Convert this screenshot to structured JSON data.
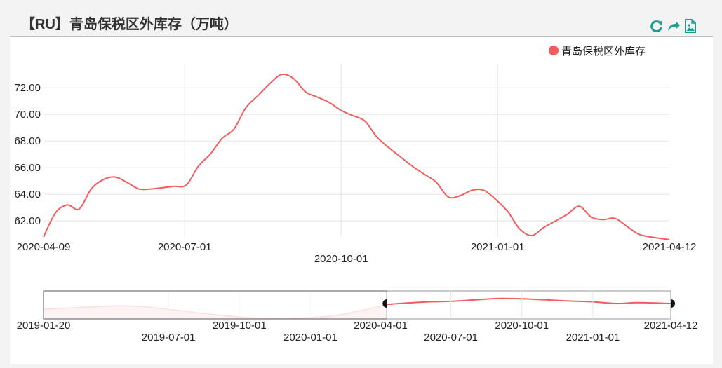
{
  "title": "【RU】青岛保税区外库存（万吨）",
  "toolbar": {
    "icons": [
      "refresh-icon",
      "share-icon",
      "save-image-icon"
    ],
    "color": "#1a9e8f"
  },
  "chart_data": {
    "type": "line",
    "title": "【RU】青岛保税区外库存（万吨）",
    "legend": {
      "position": "top-right",
      "entries": [
        "青岛保税区外库存"
      ]
    },
    "series": [
      {
        "name": "青岛保税区外库存",
        "color": "#f25c5c",
        "points": [
          [
            "2020-04-09",
            60.8
          ],
          [
            "2020-04-16",
            62.6
          ],
          [
            "2020-04-23",
            63.2
          ],
          [
            "2020-04-30",
            62.9
          ],
          [
            "2020-05-07",
            64.4
          ],
          [
            "2020-05-14",
            65.1
          ],
          [
            "2020-05-21",
            65.3
          ],
          [
            "2020-05-28",
            64.9
          ],
          [
            "2020-06-04",
            64.4
          ],
          [
            "2020-06-11",
            64.4
          ],
          [
            "2020-06-18",
            64.5
          ],
          [
            "2020-06-25",
            64.6
          ],
          [
            "2020-07-02",
            64.7
          ],
          [
            "2020-07-09",
            66.1
          ],
          [
            "2020-07-16",
            67.0
          ],
          [
            "2020-07-23",
            68.2
          ],
          [
            "2020-07-30",
            68.9
          ],
          [
            "2020-08-06",
            70.5
          ],
          [
            "2020-08-13",
            71.4
          ],
          [
            "2020-08-20",
            72.3
          ],
          [
            "2020-08-27",
            73.0
          ],
          [
            "2020-09-03",
            72.7
          ],
          [
            "2020-09-10",
            71.7
          ],
          [
            "2020-09-17",
            71.3
          ],
          [
            "2020-09-24",
            70.9
          ],
          [
            "2020-10-01",
            70.3
          ],
          [
            "2020-10-08",
            69.9
          ],
          [
            "2020-10-15",
            69.5
          ],
          [
            "2020-10-22",
            68.3
          ],
          [
            "2020-10-29",
            67.5
          ],
          [
            "2020-11-05",
            66.8
          ],
          [
            "2020-11-12",
            66.1
          ],
          [
            "2020-11-19",
            65.5
          ],
          [
            "2020-11-26",
            64.9
          ],
          [
            "2020-12-03",
            63.8
          ],
          [
            "2020-12-10",
            63.9
          ],
          [
            "2020-12-17",
            64.3
          ],
          [
            "2020-12-24",
            64.3
          ],
          [
            "2020-12-31",
            63.6
          ],
          [
            "2021-01-07",
            62.7
          ],
          [
            "2021-01-14",
            61.4
          ],
          [
            "2021-01-21",
            60.9
          ],
          [
            "2021-01-28",
            61.5
          ],
          [
            "2021-02-04",
            62.0
          ],
          [
            "2021-02-11",
            62.5
          ],
          [
            "2021-02-18",
            63.1
          ],
          [
            "2021-02-25",
            62.3
          ],
          [
            "2021-03-04",
            62.1
          ],
          [
            "2021-03-11",
            62.2
          ],
          [
            "2021-03-18",
            61.6
          ],
          [
            "2021-03-25",
            61.0
          ],
          [
            "2021-04-01",
            60.8
          ],
          [
            "2021-04-12",
            60.6
          ]
        ]
      }
    ],
    "x_ticks": [
      "2020-04-09",
      "2020-07-01",
      "2020-10-01",
      "2021-01-01",
      "2021-04-12"
    ],
    "y_ticks": [
      "62.00",
      "64.00",
      "66.00",
      "68.00",
      "70.00",
      "72.00"
    ],
    "ylim": [
      60.8,
      73.8
    ],
    "grid": true,
    "dataZoom": {
      "start_label": "2019-01-20",
      "end_label": "2021-04-12",
      "ticks": [
        "2019-07-01",
        "2019-10-01",
        "2020-01-01",
        "2020-04-01",
        "2020-07-01",
        "2020-10-01",
        "2021-01-01"
      ],
      "window_start": "2020-04-09",
      "window_end": "2021-04-12",
      "overview": [
        [
          "2019-01-20",
          0.35
        ],
        [
          "2019-03-01",
          0.4
        ],
        [
          "2019-04-01",
          0.44
        ],
        [
          "2019-05-01",
          0.47
        ],
        [
          "2019-06-01",
          0.43
        ],
        [
          "2019-07-01",
          0.34
        ],
        [
          "2019-08-01",
          0.24
        ],
        [
          "2019-09-01",
          0.15
        ],
        [
          "2019-10-01",
          0.07
        ],
        [
          "2019-11-01",
          0.01
        ],
        [
          "2019-12-01",
          0.02
        ],
        [
          "2020-01-01",
          0.05
        ],
        [
          "2020-02-01",
          0.12
        ],
        [
          "2020-03-01",
          0.27
        ],
        [
          "2020-03-20",
          0.38
        ],
        [
          "2020-04-09",
          0.52
        ],
        [
          "2020-05-01",
          0.56
        ],
        [
          "2020-06-01",
          0.61
        ],
        [
          "2020-07-01",
          0.63
        ],
        [
          "2020-08-01",
          0.68
        ],
        [
          "2020-09-01",
          0.73
        ],
        [
          "2020-10-01",
          0.72
        ],
        [
          "2020-11-01",
          0.68
        ],
        [
          "2020-12-01",
          0.64
        ],
        [
          "2021-01-01",
          0.61
        ],
        [
          "2021-02-01",
          0.55
        ],
        [
          "2021-03-01",
          0.58
        ],
        [
          "2021-04-12",
          0.55
        ]
      ]
    }
  }
}
